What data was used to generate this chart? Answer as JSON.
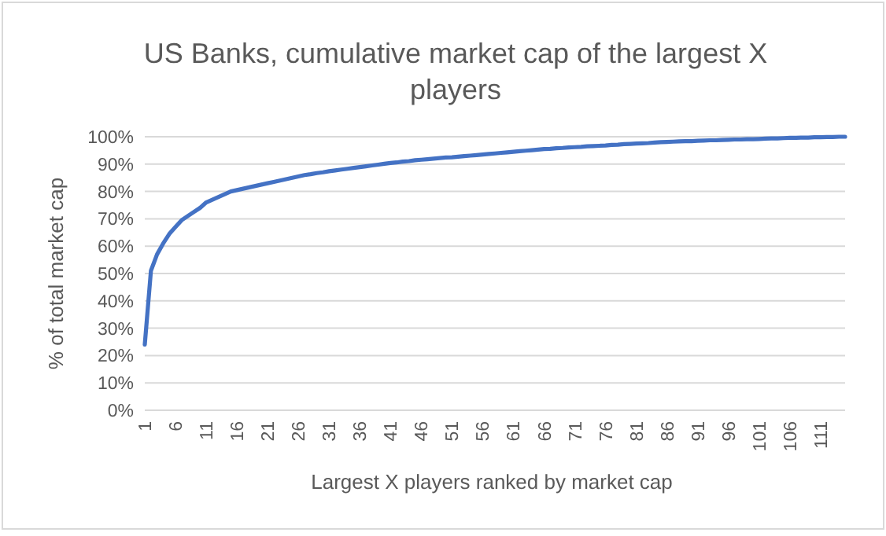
{
  "chart_data": {
    "type": "line",
    "title": "US Banks, cumulative market cap of the largest X players",
    "xlabel": "Largest X players ranked by market cap",
    "ylabel": "% of total market cap",
    "categories": [
      "1",
      null,
      null,
      null,
      null,
      "6",
      null,
      null,
      null,
      null,
      "11",
      null,
      null,
      null,
      null,
      "16",
      null,
      null,
      null,
      null,
      "21",
      null,
      null,
      null,
      null,
      "26",
      null,
      null,
      null,
      null,
      "31",
      null,
      null,
      null,
      null,
      "36",
      null,
      null,
      null,
      null,
      "41",
      null,
      null,
      null,
      null,
      "46",
      null,
      null,
      null,
      null,
      "51",
      null,
      null,
      null,
      null,
      "56",
      null,
      null,
      null,
      null,
      "61",
      null,
      null,
      null,
      null,
      "66",
      null,
      null,
      null,
      null,
      "71",
      null,
      null,
      null,
      null,
      "76",
      null,
      null,
      null,
      null,
      "81",
      null,
      null,
      null,
      null,
      "86",
      null,
      null,
      null,
      null,
      "91",
      null,
      null,
      null,
      null,
      "96",
      null,
      null,
      null,
      null,
      "101",
      null,
      null,
      null,
      null,
      "106",
      null,
      null,
      null,
      null,
      "111",
      null,
      null,
      null,
      null
    ],
    "series": [
      {
        "color": "#4472c4",
        "values": [
          24,
          51,
          57,
          61,
          64.5,
          67,
          69.5,
          71,
          72.5,
          74,
          76,
          77,
          78,
          79,
          80,
          80.5,
          81,
          81.5,
          82,
          82.5,
          83,
          83.5,
          84,
          84.5,
          85,
          85.5,
          86,
          86.3,
          86.7,
          87,
          87.4,
          87.7,
          88,
          88.3,
          88.6,
          88.9,
          89.2,
          89.5,
          89.8,
          90.1,
          90.4,
          90.6,
          90.9,
          91.1,
          91.4,
          91.6,
          91.8,
          92,
          92.2,
          92.4,
          92.5,
          92.7,
          92.9,
          93.1,
          93.3,
          93.5,
          93.7,
          93.9,
          94.1,
          94.3,
          94.5,
          94.7,
          94.9,
          95.1,
          95.3,
          95.5,
          95.6,
          95.8,
          95.9,
          96.1,
          96.2,
          96.3,
          96.5,
          96.6,
          96.7,
          96.8,
          97,
          97.1,
          97.3,
          97.4,
          97.5,
          97.6,
          97.7,
          97.9,
          98,
          98.1,
          98.2,
          98.3,
          98.4,
          98.4,
          98.5,
          98.6,
          98.7,
          98.7,
          98.8,
          98.9,
          99,
          99,
          99.1,
          99.1,
          99.2,
          99.3,
          99.4,
          99.4,
          99.5,
          99.6,
          99.6,
          99.7,
          99.7,
          99.8,
          99.8,
          99.9,
          99.9,
          100,
          100
        ]
      }
    ],
    "ylim": [
      0,
      100
    ],
    "yticks": [
      {
        "value": 0,
        "label": "0%"
      },
      {
        "value": 10,
        "label": "10%"
      },
      {
        "value": 20,
        "label": "20%"
      },
      {
        "value": 30,
        "label": "30%"
      },
      {
        "value": 40,
        "label": "40%"
      },
      {
        "value": 50,
        "label": "50%"
      },
      {
        "value": 60,
        "label": "60%"
      },
      {
        "value": 70,
        "label": "70%"
      },
      {
        "value": 80,
        "label": "80%"
      },
      {
        "value": 90,
        "label": "90%"
      },
      {
        "value": 100,
        "label": "100%"
      }
    ],
    "grid": "y",
    "marker": "none",
    "line_style": "solid"
  }
}
